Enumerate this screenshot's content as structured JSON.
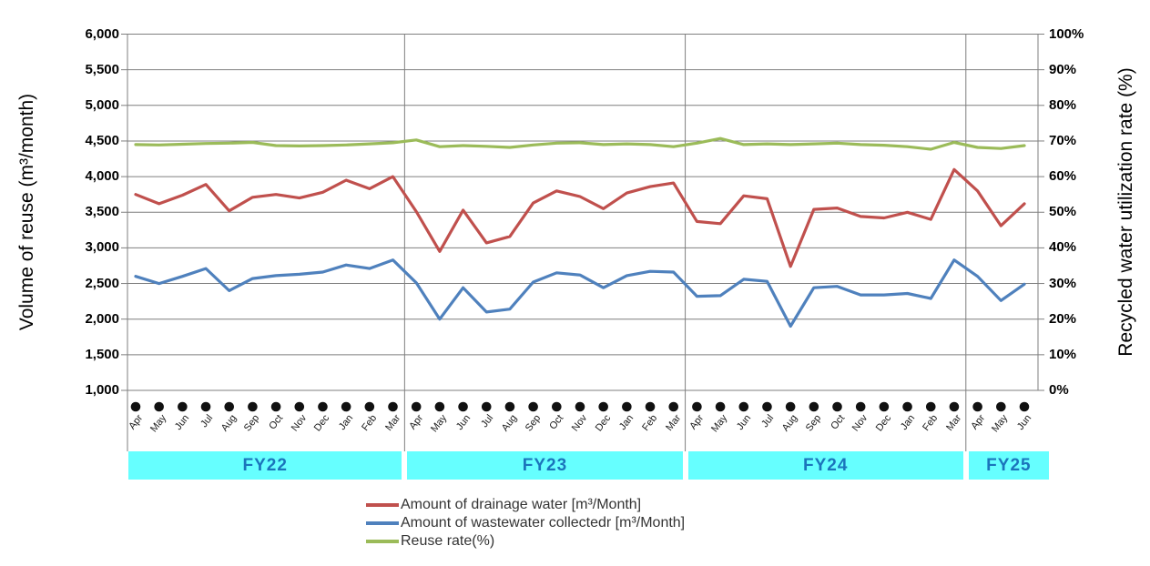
{
  "chart_data": {
    "type": "line",
    "x_labels": [
      "Apr",
      "May",
      "Jun",
      "Jul",
      "Aug",
      "Sep",
      "Oct",
      "Nov",
      "Dec",
      "Jan",
      "Feb",
      "Mar",
      "Apr",
      "May",
      "Jun",
      "Jul",
      "Aug",
      "Sep",
      "Oct",
      "Nov",
      "Dec",
      "Jan",
      "Feb",
      "Mar",
      "Apr",
      "May",
      "Jun",
      "Jul",
      "Aug",
      "Sep",
      "Oct",
      "Nov",
      "Dec",
      "Jan",
      "Feb",
      "Mar",
      "Apr",
      "May",
      "Jun"
    ],
    "series": [
      {
        "name": "Amount of drainage water [m³/Month]",
        "axis": "left",
        "color": "#C0504D",
        "values": [
          3750,
          3620,
          3740,
          3890,
          3520,
          3710,
          3750,
          3700,
          3780,
          3950,
          3830,
          4000,
          3510,
          2950,
          3530,
          3070,
          3160,
          3630,
          3800,
          3720,
          3550,
          3770,
          3860,
          3910,
          3370,
          3340,
          3730,
          3690,
          2740,
          3540,
          3560,
          3440,
          3420,
          3500,
          3400,
          4100,
          3800,
          3310,
          3620
        ]
      },
      {
        "name": "Amount of wastewater collectedr [m³/Month]",
        "axis": "left",
        "color": "#4F81BD",
        "values": [
          2600,
          2500,
          2600,
          2710,
          2400,
          2570,
          2610,
          2630,
          2660,
          2760,
          2710,
          2830,
          2510,
          2000,
          2440,
          2100,
          2140,
          2520,
          2650,
          2620,
          2440,
          2610,
          2670,
          2660,
          2320,
          2330,
          2560,
          2530,
          1900,
          2440,
          2460,
          2340,
          2340,
          2360,
          2290,
          2830,
          2600,
          2260,
          2490
        ]
      },
      {
        "name": "Reuse rate(%)",
        "axis": "right",
        "color": "#9BBB59",
        "values": [
          69.0,
          68.9,
          69.1,
          69.3,
          69.4,
          69.6,
          68.7,
          68.6,
          68.7,
          68.9,
          69.2,
          69.5,
          70.3,
          68.4,
          68.7,
          68.5,
          68.2,
          68.9,
          69.4,
          69.5,
          69.0,
          69.2,
          69.0,
          68.4,
          69.4,
          70.7,
          69.0,
          69.2,
          69.0,
          69.2,
          69.4,
          69.0,
          68.8,
          68.4,
          67.7,
          69.6,
          68.2,
          67.9,
          68.7
        ]
      }
    ],
    "left_axis": {
      "title": "Volume of reuse (m³/month)",
      "min": 1000,
      "max": 6000,
      "step": 500,
      "tick_labels": [
        "6,000",
        "5,500",
        "5,000",
        "4,500",
        "4,000",
        "3,500",
        "3,000",
        "2,500",
        "2,000",
        "1,500",
        "1,000"
      ]
    },
    "right_axis": {
      "title": "Recycled water utilization rate (%)",
      "min": 0,
      "max": 100,
      "step": 10,
      "tick_labels": [
        "100%",
        "90%",
        "80%",
        "70%",
        "60%",
        "50%",
        "40%",
        "30%",
        "20%",
        "10%",
        "0%"
      ]
    },
    "fiscal_year_bands": [
      {
        "label": "FY22",
        "months": 12
      },
      {
        "label": "FY23",
        "months": 12
      },
      {
        "label": "FY24",
        "months": 12
      },
      {
        "label": "FY25",
        "months": 3
      }
    ],
    "grid": true,
    "legend_position": "bottom",
    "styles": {
      "band_bg": "#66FFFF",
      "band_text": "#1B75BC",
      "marker_color": "#111111",
      "grid_color": "#7F7F7F",
      "legend_text": "#333333"
    }
  }
}
